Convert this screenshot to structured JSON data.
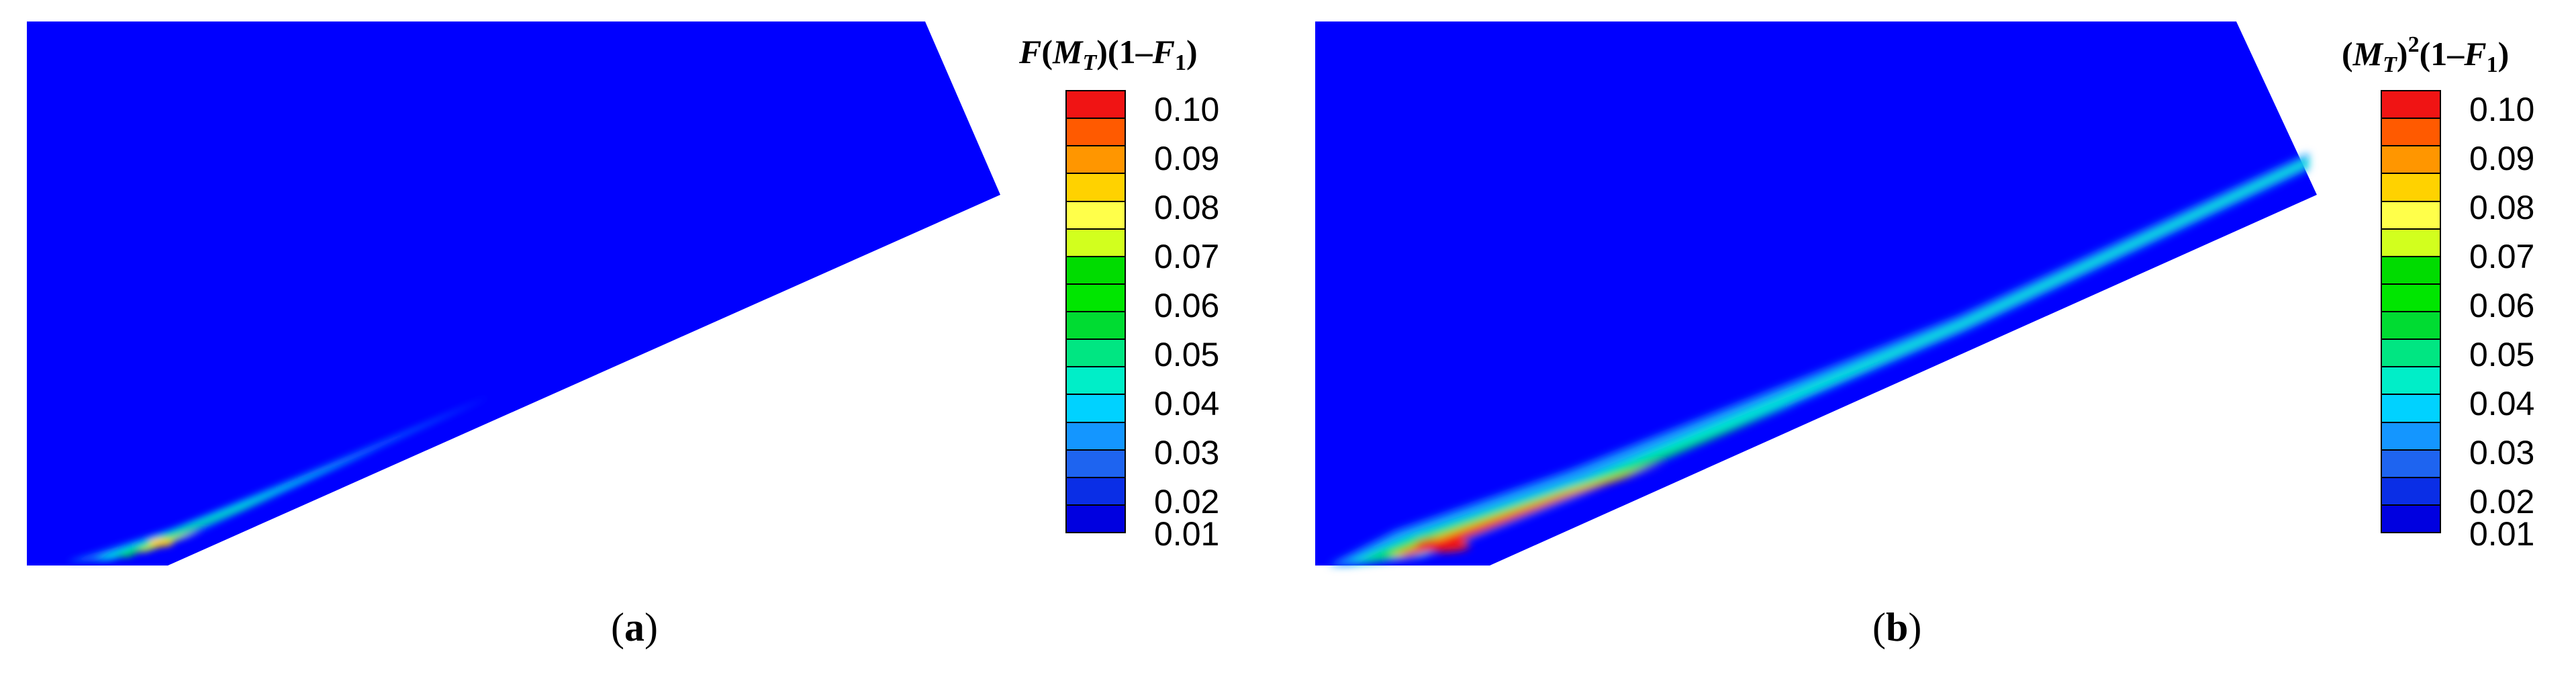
{
  "colors": {
    "background_field": "#0000ff",
    "scale": [
      "#0000e0",
      "#0a2ee6",
      "#1e64f0",
      "#1496ff",
      "#00d2ff",
      "#00eec8",
      "#00e682",
      "#00dc32",
      "#00e600",
      "#00dc00",
      "#d2ff1e",
      "#ffff4a",
      "#ffd200",
      "#ff9600",
      "#ff5a00",
      "#f01414"
    ]
  },
  "colorbar": {
    "ticks": [
      "0.10",
      "0.09",
      "0.08",
      "0.07",
      "0.06",
      "0.05",
      "0.04",
      "0.03",
      "0.02",
      "0.01"
    ]
  },
  "panel_a": {
    "legend_title_parts": [
      "F",
      "(",
      "M",
      "T",
      ")(1–",
      "F",
      "1",
      ")"
    ],
    "caption_open": "(",
    "caption_letter": "a",
    "caption_close": ")"
  },
  "panel_b": {
    "legend_title_parts": [
      "(",
      "M",
      "T",
      ")",
      "2",
      "(1–",
      "F",
      "1",
      ")"
    ],
    "caption_open": "(",
    "caption_letter": "b",
    "caption_close": ")"
  }
}
